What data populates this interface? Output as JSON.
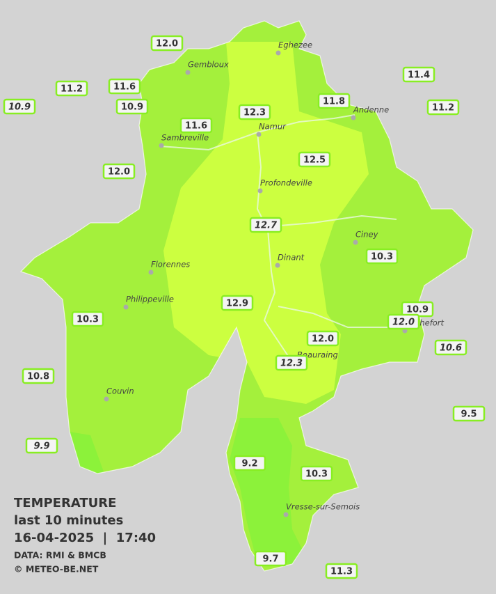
{
  "map": {
    "cities": [
      "Eghezee",
      "Gembloux",
      "Andenne",
      "Namur",
      "Sambreville",
      "Profondeville",
      "Ciney",
      "Dinant",
      "Florennes",
      "Philippeville",
      "Rochefort",
      "Beauraing",
      "Couvin",
      "Vresse-sur-Semois"
    ],
    "stations": [
      {
        "label": "12.0",
        "italic": false
      },
      {
        "label": "11.2",
        "italic": false
      },
      {
        "label": "11.6",
        "italic": false
      },
      {
        "label": "10.9",
        "italic": true
      },
      {
        "label": "10.9",
        "italic": false
      },
      {
        "label": "11.4",
        "italic": false
      },
      {
        "label": "11.8",
        "italic": false
      },
      {
        "label": "11.2",
        "italic": false
      },
      {
        "label": "12.3",
        "italic": false
      },
      {
        "label": "11.6",
        "italic": false
      },
      {
        "label": "12.0",
        "italic": false
      },
      {
        "label": "12.5",
        "italic": false
      },
      {
        "label": "12.7",
        "italic": true
      },
      {
        "label": "10.3",
        "italic": false
      },
      {
        "label": "10.9",
        "italic": false
      },
      {
        "label": "12.0",
        "italic": true
      },
      {
        "label": "12.9",
        "italic": false
      },
      {
        "label": "10.3",
        "italic": false
      },
      {
        "label": "12.0",
        "italic": false
      },
      {
        "label": "12.3",
        "italic": true
      },
      {
        "label": "10.6",
        "italic": true
      },
      {
        "label": "10.8",
        "italic": false
      },
      {
        "label": "9.5",
        "italic": false
      },
      {
        "label": "9.9",
        "italic": true
      },
      {
        "label": "9.2",
        "italic": false
      },
      {
        "label": "10.3",
        "italic": false
      },
      {
        "label": "9.7",
        "italic": false
      },
      {
        "label": "11.3",
        "italic": false
      }
    ]
  },
  "legend": {
    "title": "TEMPERATURE",
    "period": "last 10 minutes",
    "datetime": "16-04-2025  |  17:40",
    "source": "DATA: RMI & BMCB",
    "copyright": "© METEO-BE.NET"
  }
}
